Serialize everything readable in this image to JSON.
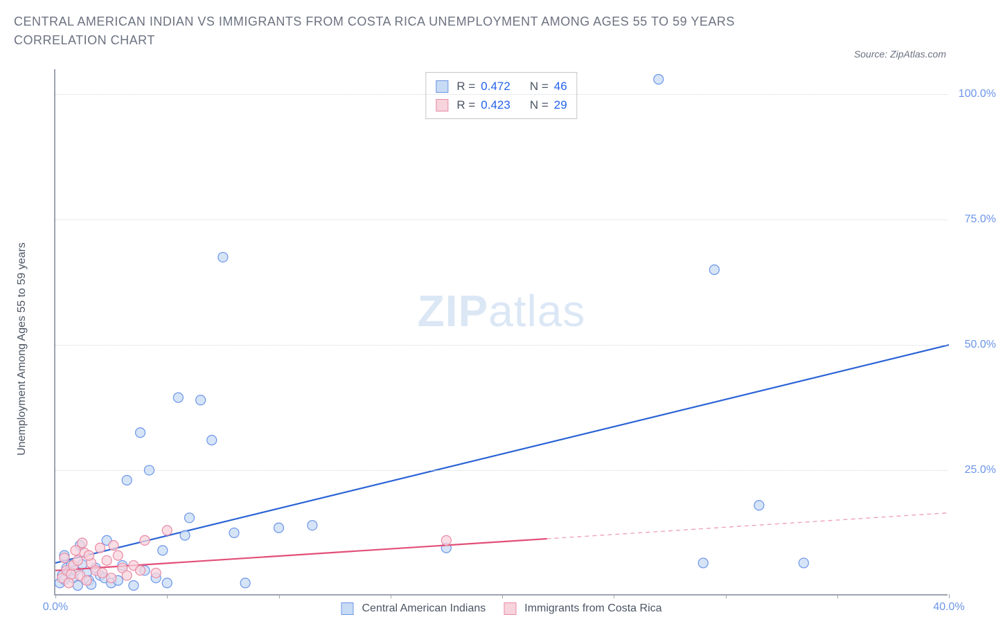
{
  "title": "CENTRAL AMERICAN INDIAN VS IMMIGRANTS FROM COSTA RICA UNEMPLOYMENT AMONG AGES 55 TO 59 YEARS CORRELATION CHART",
  "source": "Source: ZipAtlas.com",
  "watermark": {
    "zip": "ZIP",
    "atlas": "atlas"
  },
  "y_axis_label": "Unemployment Among Ages 55 to 59 years",
  "chart": {
    "type": "scatter",
    "background_color": "#ffffff",
    "grid_color": "#d1d5db",
    "axis_color": "#9ca3af",
    "xlim": [
      0,
      40
    ],
    "ylim": [
      0,
      105
    ],
    "x_ticks": [
      0,
      5,
      10,
      15,
      20,
      25,
      30,
      35,
      40
    ],
    "x_tick_labels": {
      "0": "0.0%",
      "40": "40.0%"
    },
    "y_ticks": [
      25,
      50,
      75,
      100
    ],
    "y_tick_labels": {
      "25": "25.0%",
      "50": "50.0%",
      "75": "75.0%",
      "100": "100.0%"
    },
    "marker_radius": 7,
    "marker_stroke_width": 1.2,
    "line_width": 2.2,
    "dashed_pattern": "6 5"
  },
  "series": [
    {
      "name": "Central American Indians",
      "fill": "#c8dbf4",
      "stroke": "#6b95e8",
      "line_color": "#2a63d4",
      "R": "0.472",
      "N": "46",
      "trend": {
        "x1": 0,
        "y1": 6.5,
        "x2": 40,
        "y2": 50,
        "solid_to_x": 40
      },
      "points": [
        [
          0.2,
          2.5
        ],
        [
          0.3,
          4.0
        ],
        [
          0.4,
          3.2
        ],
        [
          0.5,
          5.5
        ],
        [
          0.6,
          4.8
        ],
        [
          0.7,
          6.0
        ],
        [
          0.8,
          3.5
        ],
        [
          0.9,
          5.0
        ],
        [
          1.0,
          2.0
        ],
        [
          1.2,
          6.2
        ],
        [
          1.4,
          4.5
        ],
        [
          1.5,
          3.0
        ],
        [
          1.6,
          2.2
        ],
        [
          1.8,
          5.5
        ],
        [
          2.0,
          4.0
        ],
        [
          2.2,
          3.5
        ],
        [
          2.5,
          2.5
        ],
        [
          2.8,
          3.0
        ],
        [
          3.0,
          6.0
        ],
        [
          3.2,
          23.0
        ],
        [
          3.5,
          2.0
        ],
        [
          3.8,
          32.5
        ],
        [
          4.0,
          5.0
        ],
        [
          4.2,
          25.0
        ],
        [
          4.5,
          3.5
        ],
        [
          4.8,
          9.0
        ],
        [
          5.0,
          2.5
        ],
        [
          5.5,
          39.5
        ],
        [
          5.8,
          12.0
        ],
        [
          6.0,
          15.5
        ],
        [
          6.5,
          39.0
        ],
        [
          7.0,
          31.0
        ],
        [
          7.5,
          67.5
        ],
        [
          8.0,
          12.5
        ],
        [
          8.5,
          2.5
        ],
        [
          10.0,
          13.5
        ],
        [
          11.5,
          14.0
        ],
        [
          17.5,
          9.5
        ],
        [
          27.0,
          103.0
        ],
        [
          29.0,
          6.5
        ],
        [
          29.5,
          65.0
        ],
        [
          31.5,
          18.0
        ],
        [
          33.5,
          6.5
        ],
        [
          0.4,
          8.0
        ],
        [
          1.1,
          10.0
        ],
        [
          2.3,
          11.0
        ]
      ]
    },
    {
      "name": "Immigrants from Costa Rica",
      "fill": "#f7d3dc",
      "stroke": "#e88ba4",
      "line_color": "#e24f76",
      "R": "0.423",
      "N": "29",
      "trend": {
        "x1": 0,
        "y1": 5.0,
        "x2": 40,
        "y2": 16.5,
        "solid_to_x": 22
      },
      "points": [
        [
          0.3,
          3.5
        ],
        [
          0.5,
          5.0
        ],
        [
          0.7,
          4.2
        ],
        [
          0.8,
          6.0
        ],
        [
          1.0,
          7.0
        ],
        [
          1.1,
          4.0
        ],
        [
          1.3,
          8.5
        ],
        [
          1.4,
          3.0
        ],
        [
          1.6,
          6.5
        ],
        [
          1.8,
          5.0
        ],
        [
          2.0,
          9.5
        ],
        [
          2.1,
          4.5
        ],
        [
          2.3,
          7.0
        ],
        [
          2.5,
          3.5
        ],
        [
          2.8,
          8.0
        ],
        [
          3.0,
          5.5
        ],
        [
          3.2,
          4.0
        ],
        [
          3.5,
          6.0
        ],
        [
          4.0,
          11.0
        ],
        [
          4.5,
          4.5
        ],
        [
          5.0,
          13.0
        ],
        [
          1.2,
          10.5
        ],
        [
          0.6,
          2.5
        ],
        [
          0.9,
          9.0
        ],
        [
          1.5,
          8.0
        ],
        [
          2.6,
          10.0
        ],
        [
          3.8,
          5.0
        ],
        [
          0.4,
          7.5
        ],
        [
          17.5,
          11.0
        ]
      ]
    }
  ],
  "stats_labels": {
    "R": "R =",
    "N": "N ="
  },
  "legend": [
    {
      "label": "Central American Indians",
      "fill": "#c8dbf4",
      "stroke": "#6b95e8"
    },
    {
      "label": "Immigrants from Costa Rica",
      "fill": "#f7d3dc",
      "stroke": "#e88ba4"
    }
  ]
}
